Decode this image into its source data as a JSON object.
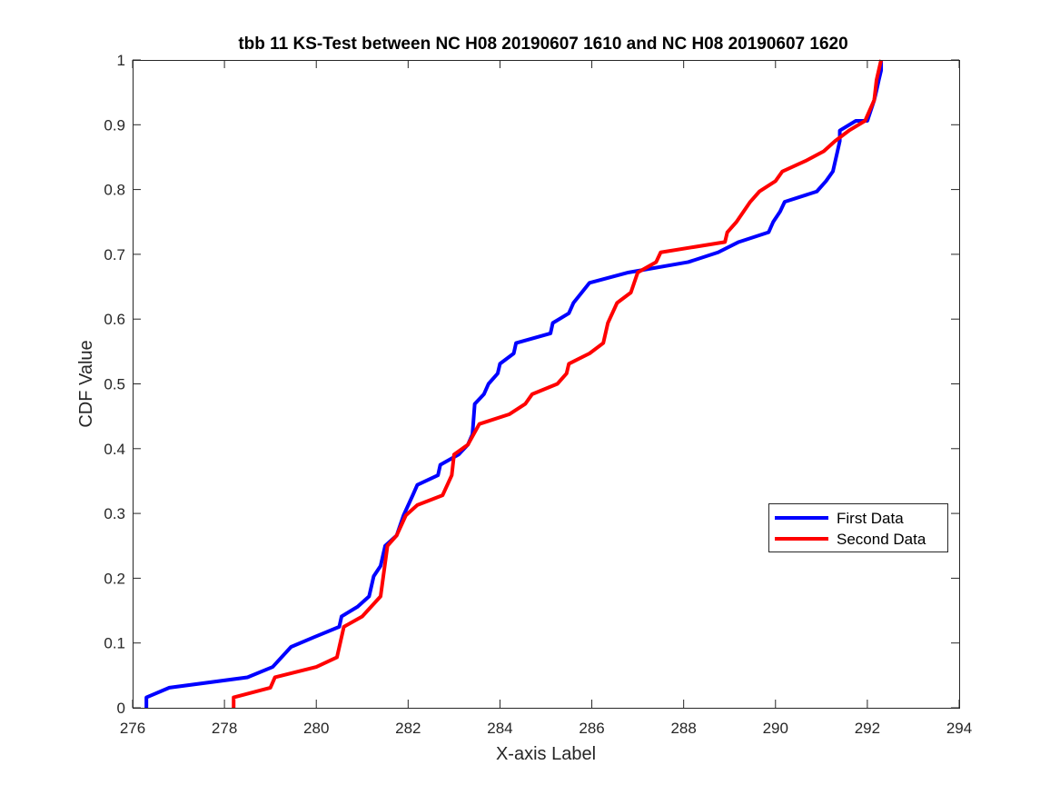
{
  "chart_data": {
    "type": "line",
    "title": "tbb 11 KS-Test between NC H08 20190607 1610 and NC H08 20190607 1620",
    "xlabel": "X-axis Label",
    "ylabel": "CDF Value",
    "xlim": [
      276,
      294
    ],
    "ylim": [
      0,
      1
    ],
    "xticks": [
      276,
      278,
      280,
      282,
      284,
      286,
      288,
      290,
      292,
      294
    ],
    "yticks": [
      0,
      0.1,
      0.2,
      0.3,
      0.4,
      0.5,
      0.6,
      0.7,
      0.8,
      0.9,
      1
    ],
    "grid": false,
    "legend_position": "right",
    "series": [
      {
        "name": "First Data",
        "color": "#0000ff",
        "points": [
          [
            276.3,
            0.0
          ],
          [
            276.3,
            0.016
          ],
          [
            276.8,
            0.031
          ],
          [
            278.5,
            0.047
          ],
          [
            279.05,
            0.063
          ],
          [
            279.45,
            0.094
          ],
          [
            279.95,
            0.109
          ],
          [
            280.5,
            0.125
          ],
          [
            280.55,
            0.141
          ],
          [
            280.9,
            0.156
          ],
          [
            281.15,
            0.172
          ],
          [
            281.25,
            0.203
          ],
          [
            281.4,
            0.219
          ],
          [
            281.5,
            0.25
          ],
          [
            281.75,
            0.266
          ],
          [
            281.9,
            0.297
          ],
          [
            282.1,
            0.328
          ],
          [
            282.2,
            0.344
          ],
          [
            282.65,
            0.359
          ],
          [
            282.7,
            0.375
          ],
          [
            283.1,
            0.391
          ],
          [
            283.3,
            0.406
          ],
          [
            283.4,
            0.422
          ],
          [
            283.45,
            0.469
          ],
          [
            283.65,
            0.484
          ],
          [
            283.75,
            0.5
          ],
          [
            283.95,
            0.516
          ],
          [
            284.0,
            0.531
          ],
          [
            284.3,
            0.547
          ],
          [
            284.35,
            0.563
          ],
          [
            285.1,
            0.578
          ],
          [
            285.15,
            0.594
          ],
          [
            285.5,
            0.609
          ],
          [
            285.6,
            0.625
          ],
          [
            285.95,
            0.656
          ],
          [
            286.8,
            0.672
          ],
          [
            288.1,
            0.688
          ],
          [
            288.75,
            0.703
          ],
          [
            289.2,
            0.719
          ],
          [
            289.85,
            0.734
          ],
          [
            289.95,
            0.75
          ],
          [
            290.1,
            0.766
          ],
          [
            290.2,
            0.781
          ],
          [
            290.9,
            0.797
          ],
          [
            291.1,
            0.813
          ],
          [
            291.25,
            0.828
          ],
          [
            291.35,
            0.859
          ],
          [
            291.4,
            0.875
          ],
          [
            291.4,
            0.891
          ],
          [
            291.75,
            0.906
          ],
          [
            292.0,
            0.906
          ],
          [
            292.15,
            0.938
          ],
          [
            292.2,
            0.953
          ],
          [
            292.25,
            0.969
          ],
          [
            292.3,
            0.984
          ],
          [
            292.3,
            1.0
          ]
        ]
      },
      {
        "name": "Second Data",
        "color": "#ff0000",
        "points": [
          [
            278.2,
            0.0
          ],
          [
            278.2,
            0.016
          ],
          [
            279.0,
            0.031
          ],
          [
            279.1,
            0.047
          ],
          [
            280.0,
            0.063
          ],
          [
            280.45,
            0.078
          ],
          [
            280.6,
            0.125
          ],
          [
            281.0,
            0.141
          ],
          [
            281.4,
            0.172
          ],
          [
            281.55,
            0.25
          ],
          [
            281.75,
            0.266
          ],
          [
            281.95,
            0.297
          ],
          [
            282.2,
            0.313
          ],
          [
            282.75,
            0.328
          ],
          [
            282.95,
            0.359
          ],
          [
            283.0,
            0.391
          ],
          [
            283.3,
            0.406
          ],
          [
            283.55,
            0.438
          ],
          [
            284.2,
            0.453
          ],
          [
            284.55,
            0.469
          ],
          [
            284.7,
            0.484
          ],
          [
            285.25,
            0.5
          ],
          [
            285.45,
            0.516
          ],
          [
            285.5,
            0.531
          ],
          [
            285.95,
            0.547
          ],
          [
            286.25,
            0.563
          ],
          [
            286.35,
            0.594
          ],
          [
            286.55,
            0.625
          ],
          [
            286.85,
            0.641
          ],
          [
            287.0,
            0.672
          ],
          [
            287.4,
            0.688
          ],
          [
            287.5,
            0.703
          ],
          [
            288.9,
            0.719
          ],
          [
            288.95,
            0.734
          ],
          [
            289.15,
            0.75
          ],
          [
            289.45,
            0.781
          ],
          [
            289.65,
            0.797
          ],
          [
            290.0,
            0.813
          ],
          [
            290.15,
            0.828
          ],
          [
            290.65,
            0.844
          ],
          [
            291.05,
            0.859
          ],
          [
            291.3,
            0.875
          ],
          [
            291.6,
            0.891
          ],
          [
            291.95,
            0.906
          ],
          [
            292.15,
            0.938
          ],
          [
            292.2,
            0.969
          ],
          [
            292.3,
            1.0
          ]
        ]
      }
    ]
  }
}
